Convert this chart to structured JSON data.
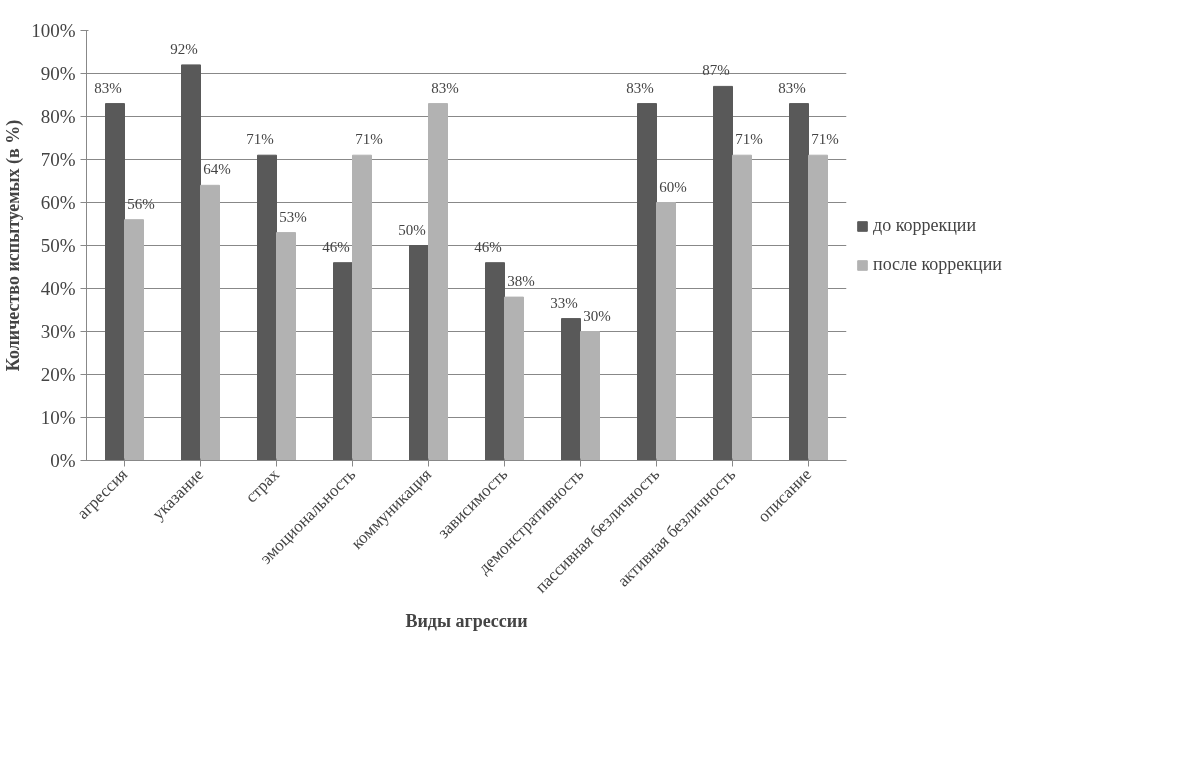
{
  "chart_data": {
    "type": "bar",
    "xlabel": "Виды агрессии",
    "ylabel": "Количество испытуемых (в %)",
    "categories": [
      "агрессия",
      "указание",
      "страх",
      "эмоциональность",
      "коммуникация",
      "зависимость",
      "демонстративность",
      "пассивная безличность",
      "активная безличность",
      "описание"
    ],
    "series": [
      {
        "name": "до коррекции",
        "color": "#595959",
        "values": [
          83,
          92,
          71,
          46,
          50,
          46,
          33,
          83,
          87,
          83
        ],
        "value_labels": [
          "83%",
          "92%",
          "71%",
          "46%",
          "50%",
          "46%",
          "33%",
          "83%",
          "87%",
          "83%"
        ]
      },
      {
        "name": "после коррекции",
        "color": "#b2b2b2",
        "values": [
          56,
          64,
          53,
          71,
          83,
          38,
          30,
          60,
          71,
          71
        ],
        "value_labels": [
          "56%",
          "64%",
          "53%",
          "71%",
          "83%",
          "38%",
          "30%",
          "60%",
          "71%",
          "71%"
        ]
      }
    ],
    "ylim": [
      0,
      100
    ],
    "yticks": [
      {
        "value": 0,
        "label": "0%"
      },
      {
        "value": 10,
        "label": "10%"
      },
      {
        "value": 20,
        "label": "20%"
      },
      {
        "value": 30,
        "label": "30%"
      },
      {
        "value": 40,
        "label": "40%"
      },
      {
        "value": 50,
        "label": "50%"
      },
      {
        "value": 60,
        "label": "60%"
      },
      {
        "value": 70,
        "label": "70%"
      },
      {
        "value": 80,
        "label": "80%"
      },
      {
        "value": 90,
        "label": "90%"
      },
      {
        "value": 100,
        "label": "100%"
      }
    ],
    "grid": "y",
    "legend": "right"
  }
}
